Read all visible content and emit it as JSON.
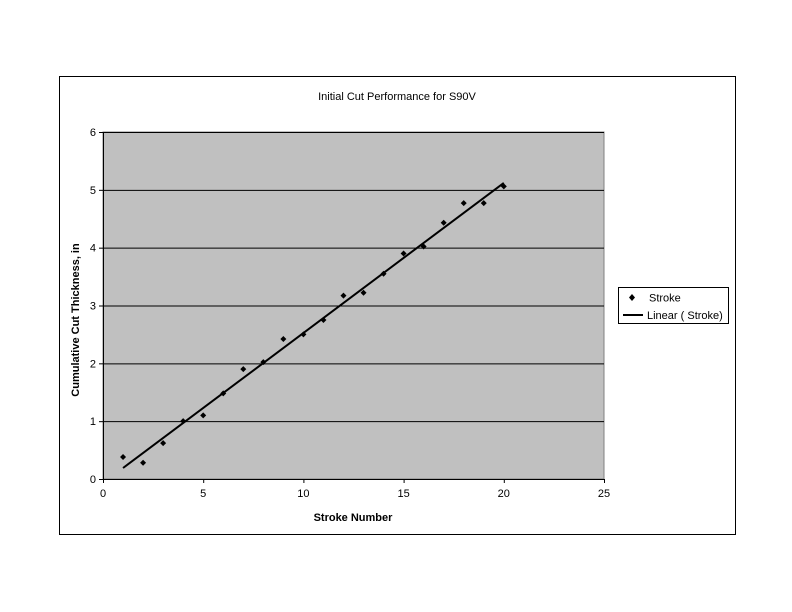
{
  "chart_data": {
    "type": "scatter",
    "title": "Initial Cut Performance for S90V",
    "xlabel": "Stroke Number",
    "ylabel": "Cumulative Cut Thickness, in",
    "xlim": [
      0,
      25
    ],
    "ylim": [
      0,
      6
    ],
    "x_ticks": [
      "0",
      "5",
      "10",
      "15",
      "20",
      "25"
    ],
    "y_ticks": [
      "0",
      "1",
      "2",
      "3",
      "4",
      "5",
      "6"
    ],
    "grid": "horizontal",
    "legend_position": "right",
    "colors": {
      "plot_bg": "#c0c0c0",
      "marker": "#000000",
      "line": "#000000"
    },
    "series": [
      {
        "name": "Stroke",
        "kind": "scatter",
        "x": [
          1,
          2,
          3,
          4,
          5,
          6,
          7,
          8,
          9,
          10,
          11,
          12,
          13,
          14,
          15,
          16,
          17,
          18,
          19,
          20
        ],
        "y": [
          0.38,
          0.28,
          0.62,
          1.0,
          1.1,
          1.48,
          1.9,
          2.02,
          2.42,
          2.5,
          2.75,
          3.17,
          3.22,
          3.55,
          3.9,
          4.02,
          4.43,
          4.77,
          4.77,
          5.06
        ]
      },
      {
        "name": "Linear ( Stroke)",
        "kind": "trendline",
        "x": [
          1,
          20
        ],
        "y": [
          0.19,
          5.12
        ]
      }
    ]
  }
}
